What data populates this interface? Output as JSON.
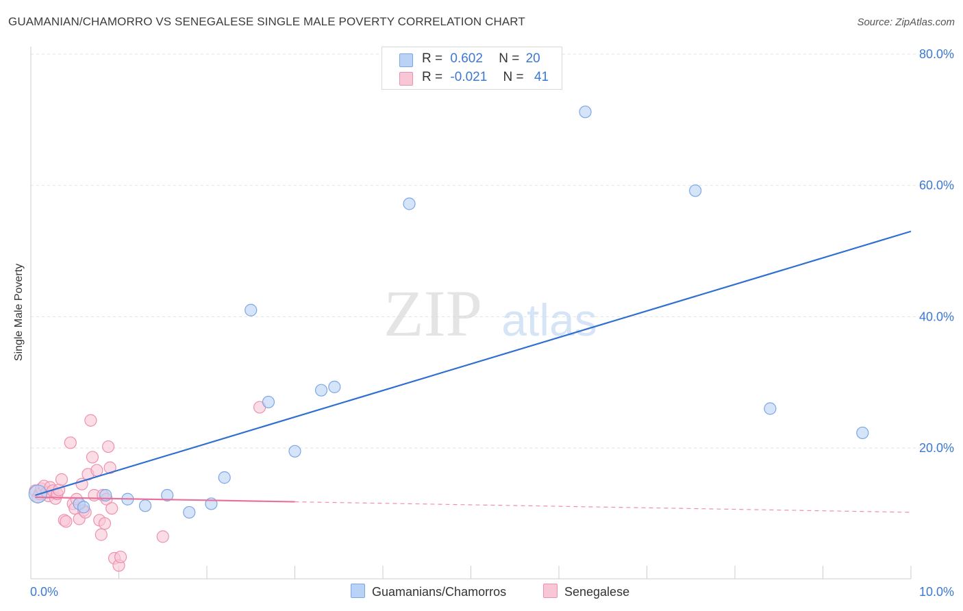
{
  "title": "GUAMANIAN/CHAMORRO VS SENEGALESE SINGLE MALE POVERTY CORRELATION CHART",
  "source": "Source: ZipAtlas.com",
  "watermark": {
    "zip": "ZIP",
    "atlas": "atlas"
  },
  "colors": {
    "blue_fill": "#b9d2f5",
    "blue_stroke": "#7aa6e6",
    "blue_line": "#2f6fd0",
    "pink_fill": "#f9c6d6",
    "pink_stroke": "#ee8fb0",
    "pink_line": "#e8729c",
    "axis_text": "#3a78d4",
    "grid": "#e2e2e2"
  },
  "legend": {
    "series": [
      {
        "r_label": "R =",
        "r_value": "0.602",
        "n_label": "N =",
        "n_value": "20"
      },
      {
        "r_label": "R =",
        "r_value": "-0.021",
        "n_label": "N =",
        "n_value": "41"
      }
    ]
  },
  "bottom_legend": {
    "blue": "Guamanians/Chamorros",
    "pink": "Senegalese"
  },
  "chart_data": {
    "type": "scatter",
    "title": "GUAMANIAN/CHAMORRO VS SENEGALESE SINGLE MALE POVERTY CORRELATION CHART",
    "xlabel": "",
    "ylabel": "Single Male Poverty",
    "xlim": [
      0,
      10
    ],
    "ylim": [
      0,
      82
    ],
    "x_tick_labels": {
      "min": "0.0%",
      "max": "10.0%"
    },
    "y_ticks": [
      20,
      40,
      60,
      80
    ],
    "y_tick_labels": [
      "20.0%",
      "40.0%",
      "60.0%",
      "80.0%"
    ],
    "series": [
      {
        "name": "Guamanians/Chamorros",
        "r": 0.602,
        "n": 20,
        "points": [
          [
            0.08,
            13.0
          ],
          [
            0.55,
            11.5
          ],
          [
            0.6,
            11.0
          ],
          [
            0.85,
            12.8
          ],
          [
            1.1,
            12.2
          ],
          [
            1.3,
            11.2
          ],
          [
            1.55,
            12.8
          ],
          [
            1.8,
            10.2
          ],
          [
            2.05,
            11.5
          ],
          [
            2.2,
            15.5
          ],
          [
            2.5,
            41.0
          ],
          [
            2.7,
            27.0
          ],
          [
            3.0,
            19.5
          ],
          [
            3.3,
            28.8
          ],
          [
            3.45,
            29.3
          ],
          [
            4.3,
            57.2
          ],
          [
            6.3,
            71.2
          ],
          [
            7.55,
            59.2
          ],
          [
            8.4,
            26.0
          ],
          [
            9.45,
            22.3
          ]
        ],
        "trend": {
          "x": [
            0.05,
            10.0
          ],
          "y": [
            12.8,
            53.0
          ],
          "style": "solid"
        }
      },
      {
        "name": "Senegalese",
        "r": -0.021,
        "n": 41,
        "points": [
          [
            0.05,
            13.5
          ],
          [
            0.08,
            12.5
          ],
          [
            0.1,
            13.0
          ],
          [
            0.12,
            13.8
          ],
          [
            0.15,
            14.2
          ],
          [
            0.18,
            13.2
          ],
          [
            0.2,
            12.7
          ],
          [
            0.22,
            14.0
          ],
          [
            0.25,
            13.5
          ],
          [
            0.28,
            12.3
          ],
          [
            0.3,
            13.0
          ],
          [
            0.32,
            13.6
          ],
          [
            0.35,
            15.2
          ],
          [
            0.38,
            9.0
          ],
          [
            0.4,
            8.8
          ],
          [
            0.45,
            20.8
          ],
          [
            0.48,
            11.5
          ],
          [
            0.5,
            10.8
          ],
          [
            0.52,
            12.2
          ],
          [
            0.55,
            9.2
          ],
          [
            0.58,
            14.5
          ],
          [
            0.6,
            10.5
          ],
          [
            0.62,
            10.2
          ],
          [
            0.65,
            16.0
          ],
          [
            0.68,
            24.2
          ],
          [
            0.7,
            18.6
          ],
          [
            0.72,
            12.8
          ],
          [
            0.75,
            16.6
          ],
          [
            0.78,
            9.0
          ],
          [
            0.8,
            6.8
          ],
          [
            0.82,
            12.8
          ],
          [
            0.84,
            8.5
          ],
          [
            0.86,
            12.2
          ],
          [
            0.88,
            20.2
          ],
          [
            0.9,
            17.0
          ],
          [
            0.92,
            10.8
          ],
          [
            0.95,
            3.2
          ],
          [
            1.0,
            2.1
          ],
          [
            1.02,
            3.4
          ],
          [
            1.5,
            6.5
          ],
          [
            2.6,
            26.2
          ]
        ],
        "trend": {
          "x": [
            0.05,
            3.0
          ],
          "y": [
            12.5,
            11.8
          ],
          "style": "solid",
          "extension": {
            "x": [
              3.0,
              10.0
            ],
            "y": [
              11.8,
              10.2
            ],
            "style": "dashed"
          }
        }
      }
    ]
  }
}
